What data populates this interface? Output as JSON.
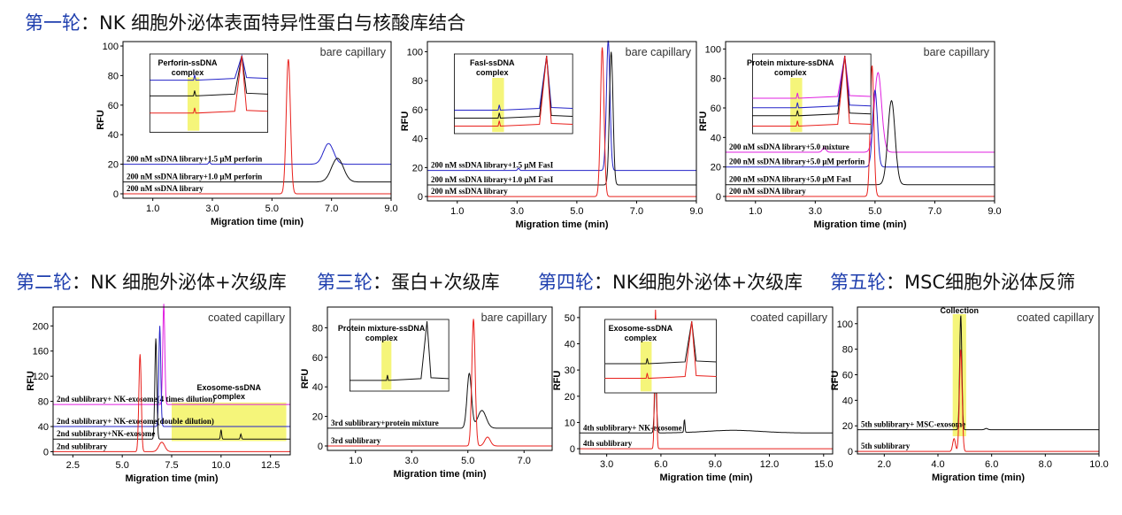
{
  "headings": [
    {
      "round": "第一轮",
      "rest": "：NK 细胞外泌体表面特异性蛋白与核酸库结合"
    },
    {
      "round": "第二轮",
      "rest": "：NK 细胞外泌体+次级库"
    },
    {
      "round": "第三轮",
      "rest": "：蛋白+次级库"
    },
    {
      "round": "第四轮",
      "rest": "：NK细胞外泌体+次级库"
    },
    {
      "round": "第五轮",
      "rest": "：MSC细胞外泌体反筛"
    }
  ],
  "colors": {
    "red": "#e8201c",
    "blue": "#2323c8",
    "black": "#111111",
    "magenta": "#e020e0",
    "highlight": "#f5f57a"
  },
  "chart_data": [
    {
      "type": "line",
      "corner_label": "bare capillary",
      "xlabel": "Migration time (min)",
      "ylabel": "RFU",
      "xlim": [
        0,
        9.0
      ],
      "ylim": [
        -3,
        103
      ],
      "xticks": [
        "1.0",
        "3.0",
        "5.0",
        "7.0",
        "9.0"
      ],
      "yticks": [
        "0",
        "20",
        "40",
        "60",
        "80",
        "100"
      ],
      "series": [
        {
          "name": "200 nM ssDNA library+1.5 μM perforin",
          "color": "blue",
          "baseline": 20,
          "peaks": [
            {
              "x": 2.9,
              "y": 1.5,
              "w": 0.03
            },
            {
              "x": 6.9,
              "y": 14,
              "w": 0.17
            }
          ]
        },
        {
          "name": "200 nM ssDNA library+1.0 μM perforin",
          "color": "black",
          "baseline": 8,
          "peaks": [
            {
              "x": 7.2,
              "y": 16,
              "w": 0.2
            }
          ]
        },
        {
          "name": "200 nM ssDNA library",
          "color": "red",
          "baseline": 0,
          "peaks": [
            {
              "x": 5.55,
              "y": 91,
              "w": 0.07
            }
          ]
        }
      ],
      "inset": {
        "label": "Perforin-ssDNA complex",
        "traces": [
          {
            "color": "blue",
            "level": 0.62
          },
          {
            "color": "black",
            "level": 0.42
          },
          {
            "color": "red",
            "level": 0.2
          }
        ]
      }
    },
    {
      "type": "line",
      "corner_label": "bare capillary",
      "xlabel": "Migration time (min)",
      "ylabel": "RFU",
      "xlim": [
        0,
        9.0
      ],
      "ylim": [
        -3,
        107
      ],
      "xticks": [
        "1.0",
        "3.0",
        "5.0",
        "7.0",
        "9.0"
      ],
      "yticks": [
        "0",
        "20",
        "40",
        "60",
        "80",
        "100"
      ],
      "series": [
        {
          "name": "200 nM ssDNA library+1.5 μM FasI",
          "color": "blue",
          "baseline": 18,
          "peaks": [
            {
              "x": 3.05,
              "y": 1.5,
              "w": 0.03
            },
            {
              "x": 6.05,
              "y": 90,
              "w": 0.06
            }
          ]
        },
        {
          "name": "200 nM ssDNA library+1.0 μM FasI",
          "color": "black",
          "baseline": 8,
          "peaks": [
            {
              "x": 6.15,
              "y": 92,
              "w": 0.06
            }
          ]
        },
        {
          "name": "200 nM ssDNA library",
          "color": "red",
          "baseline": 0,
          "peaks": [
            {
              "x": 5.85,
              "y": 103,
              "w": 0.06
            }
          ]
        }
      ],
      "inset": {
        "label": "FasI-ssDNA complex",
        "traces": [
          {
            "color": "blue",
            "level": 0.25
          },
          {
            "color": "black",
            "level": 0.15
          },
          {
            "color": "red",
            "level": 0.05
          }
        ]
      }
    },
    {
      "type": "line",
      "corner_label": "bare capillary",
      "xlabel": "Migration time (min)",
      "ylabel": "RFU",
      "xlim": [
        0,
        9.0
      ],
      "ylim": [
        -3,
        105
      ],
      "xticks": [
        "1.0",
        "3.0",
        "5.0",
        "7.0",
        "9.0"
      ],
      "yticks": [
        "0",
        "20",
        "40",
        "60",
        "80",
        "100"
      ],
      "series": [
        {
          "name": "200 nM ssDNA library+5.0 mixture",
          "color": "magenta",
          "baseline": 30,
          "peaks": [
            {
              "x": 3.3,
              "y": 3,
              "w": 0.06
            },
            {
              "x": 5.1,
              "y": 54,
              "w": 0.12
            }
          ]
        },
        {
          "name": "200 nM ssDNA library+5.0 μM perforin",
          "color": "blue",
          "baseline": 20,
          "peaks": [
            {
              "x": 5.0,
              "y": 52,
              "w": 0.08
            }
          ]
        },
        {
          "name": "200 nM ssDNA library+5.0 μM FasI",
          "color": "black",
          "baseline": 8,
          "peaks": [
            {
              "x": 5.55,
              "y": 57,
              "w": 0.12
            }
          ]
        },
        {
          "name": "200 nM ssDNA library",
          "color": "red",
          "baseline": 0,
          "peaks": [
            {
              "x": 4.9,
              "y": 89,
              "w": 0.06
            }
          ]
        }
      ],
      "inset": {
        "label": "Protein mixture-ssDNA complex",
        "traces": [
          {
            "color": "magenta",
            "level": 0.4
          },
          {
            "color": "blue",
            "level": 0.28
          },
          {
            "color": "black",
            "level": 0.18
          },
          {
            "color": "red",
            "level": 0.05
          }
        ]
      }
    },
    {
      "type": "line",
      "corner_label": "coated capillary",
      "xlabel": "Migration time (min)",
      "ylabel": "RFU",
      "xlim": [
        1.5,
        13.5
      ],
      "ylim": [
        -5,
        230
      ],
      "xticks": [
        "2.5",
        "5.0",
        "7.5",
        "10.0",
        "12.5"
      ],
      "yticks": [
        "0",
        "40",
        "80",
        "120",
        "160",
        "200"
      ],
      "region": {
        "label": "Exosome-ssDNA complex",
        "x0": 7.5,
        "x1": 13.3
      },
      "series": [
        {
          "name": "2nd sublibrary+ NK-exosome(4 times dilution)",
          "color": "magenta",
          "baseline": 75,
          "peaks": [
            {
              "x": 7.1,
              "y": 160,
              "w": 0.05
            }
          ]
        },
        {
          "name": "2nd sublibrary+ NK-exosome(double dilution)",
          "color": "blue",
          "baseline": 40,
          "peaks": [
            {
              "x": 6.9,
              "y": 160,
              "w": 0.05
            }
          ]
        },
        {
          "name": "2nd sublibrary+NK-exosome",
          "color": "black",
          "baseline": 20,
          "peaks": [
            {
              "x": 6.7,
              "y": 160,
              "w": 0.05
            },
            {
              "x": 10.0,
              "y": 15,
              "w": 0.03
            },
            {
              "x": 11.0,
              "y": 8,
              "w": 0.03
            }
          ]
        },
        {
          "name": "2nd sublibrary",
          "color": "red",
          "baseline": 0,
          "peaks": [
            {
              "x": 5.9,
              "y": 155,
              "w": 0.06
            },
            {
              "x": 7.0,
              "y": 15,
              "w": 0.15
            }
          ]
        }
      ]
    },
    {
      "type": "line",
      "corner_label": "bare capillary",
      "xlabel": "Migration time (min)",
      "ylabel": "RFU",
      "xlim": [
        0,
        8.0
      ],
      "ylim": [
        -3,
        94
      ],
      "xticks": [
        "1.0",
        "3.0",
        "5.0",
        "7.0"
      ],
      "yticks": [
        "0",
        "20",
        "40",
        "60",
        "80"
      ],
      "series": [
        {
          "name": "3rd sublibrary+protein mixture",
          "color": "black",
          "baseline": 12,
          "peaks": [
            {
              "x": 5.05,
              "y": 37,
              "w": 0.08
            },
            {
              "x": 5.5,
              "y": 12,
              "w": 0.15
            }
          ]
        },
        {
          "name": "3rd sublibrary",
          "color": "red",
          "baseline": 0,
          "peaks": [
            {
              "x": 5.2,
              "y": 86,
              "w": 0.06
            },
            {
              "x": 5.7,
              "y": 6,
              "w": 0.1
            }
          ]
        }
      ],
      "inset": {
        "label": "Protein mixture-ssDNA complex",
        "traces": [
          {
            "color": "black",
            "level": 0.1
          }
        ]
      }
    },
    {
      "type": "line",
      "corner_label": "coated capillary",
      "xlabel": "Migration time (min)",
      "ylabel": "RFU",
      "xlim": [
        1.5,
        15.5
      ],
      "ylim": [
        -2,
        54
      ],
      "xticks": [
        "3.0",
        "6.0",
        "9.0",
        "12.0",
        "15.0"
      ],
      "yticks": [
        "0",
        "10",
        "20",
        "30",
        "40",
        "50"
      ],
      "series": [
        {
          "name": "4th sublibrary+ NK-exosome",
          "color": "black",
          "baseline": 6,
          "peaks": [
            {
              "x": 5.7,
              "y": 20,
              "w": 0.06
            },
            {
              "x": 7.3,
              "y": 5,
              "w": 0.03
            },
            {
              "x": 10.0,
              "y": 1,
              "w": 1.5
            }
          ]
        },
        {
          "name": "4th sublibrary",
          "color": "red",
          "baseline": 0,
          "peaks": [
            {
              "x": 5.7,
              "y": 53,
              "w": 0.05
            }
          ]
        }
      ],
      "inset": {
        "label": "Exosome-ssDNA complex",
        "traces": [
          {
            "color": "black",
            "level": 0.35
          },
          {
            "color": "red",
            "level": 0.15
          }
        ]
      }
    },
    {
      "type": "line",
      "corner_label": "coated capillary",
      "xlabel": "Migration time (min)",
      "ylabel": "RFU",
      "xlim": [
        1.0,
        10.0
      ],
      "ylim": [
        -2,
        113
      ],
      "xticks": [
        "2.0",
        "4.0",
        "6.0",
        "8.0",
        "10.0"
      ],
      "yticks": [
        "0",
        "20",
        "40",
        "60",
        "80",
        "100"
      ],
      "region": {
        "label": "Collection",
        "x0": 4.55,
        "x1": 5.05
      },
      "series": [
        {
          "name": "5th sublibrary+ MSC-exosome",
          "color": "black",
          "baseline": 17,
          "peaks": [
            {
              "x": 4.85,
              "y": 90,
              "w": 0.04
            },
            {
              "x": 5.8,
              "y": 1,
              "w": 0.05
            }
          ]
        },
        {
          "name": "5th sublibrary",
          "color": "red",
          "baseline": 0,
          "peaks": [
            {
              "x": 4.85,
              "y": 80,
              "w": 0.05
            },
            {
              "x": 4.6,
              "y": 10,
              "w": 0.05
            }
          ]
        }
      ]
    }
  ]
}
